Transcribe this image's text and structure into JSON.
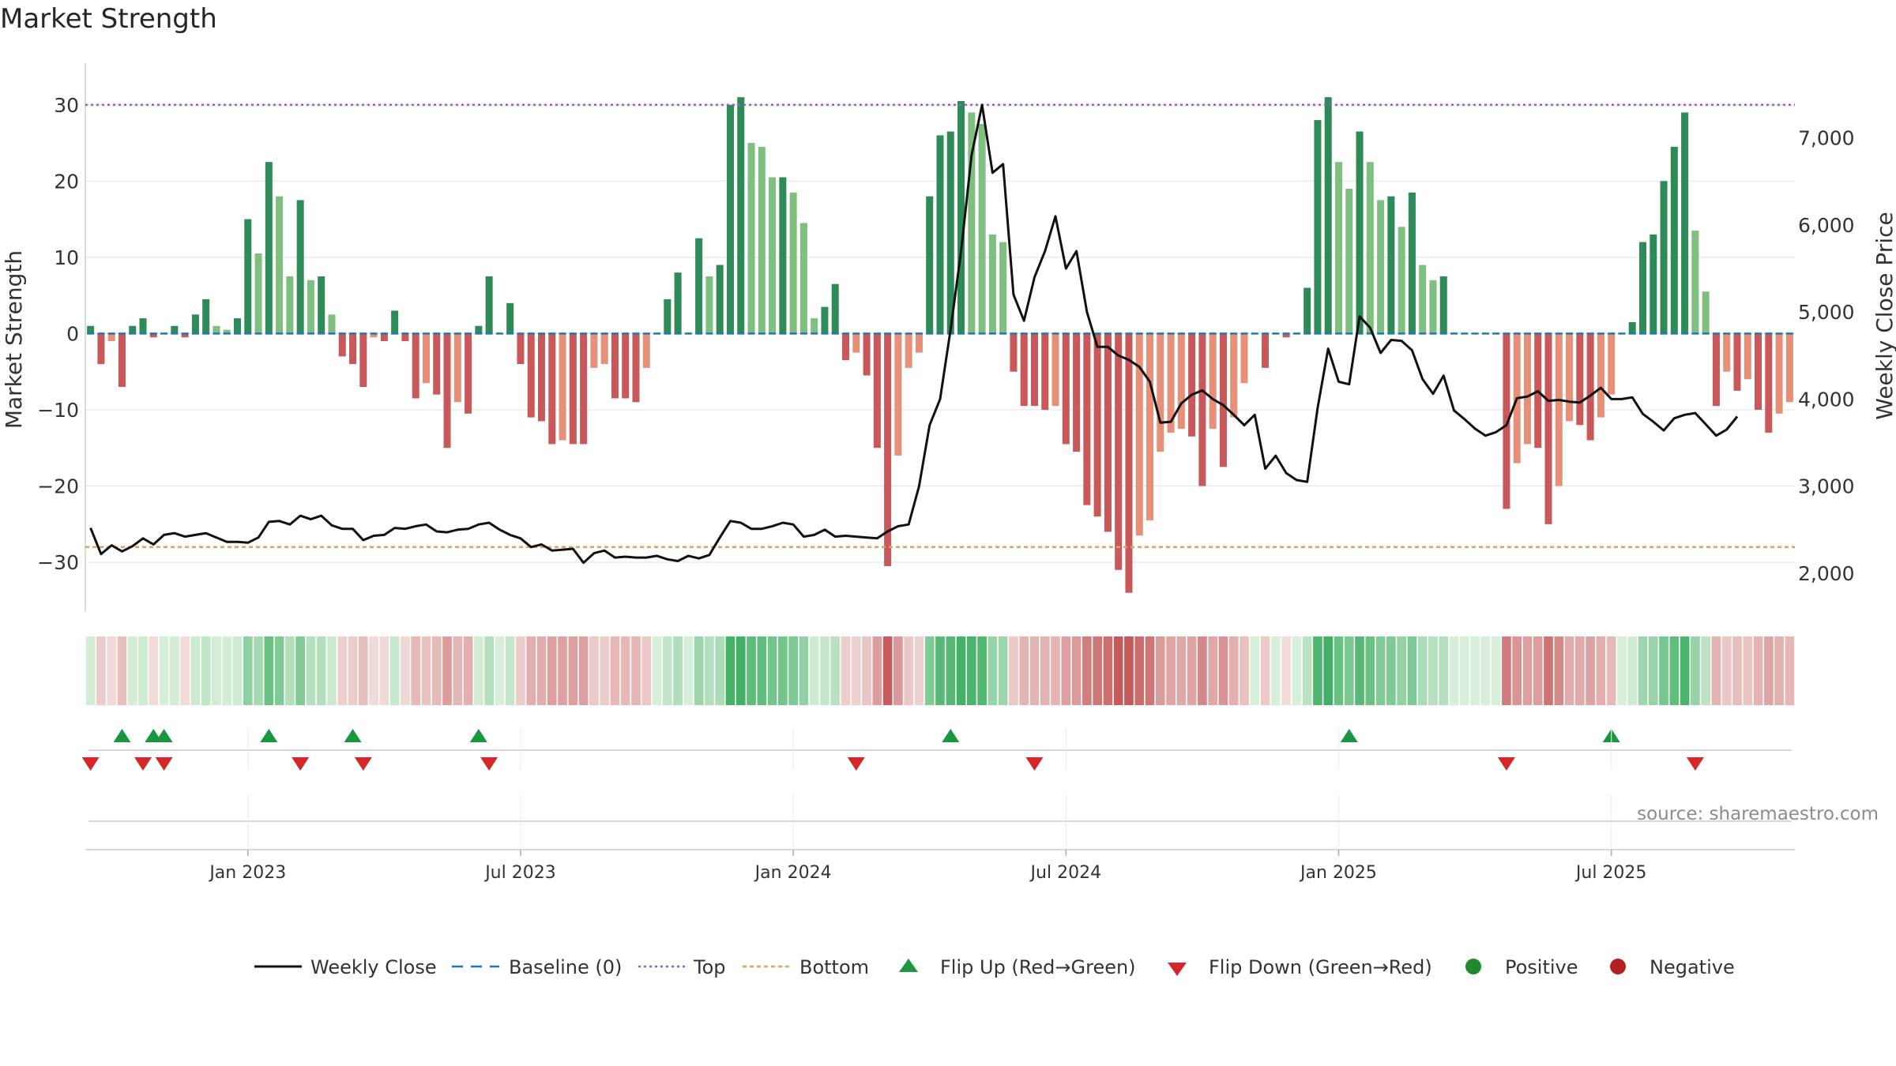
{
  "title": "Market Strength",
  "source_label": "source: sharemaestro.com",
  "colors": {
    "strong_green": "#2e8b57",
    "light_green": "#7fbf7f",
    "strong_red": "#c8585a",
    "light_red": "#e6907a",
    "top_line": "#9b59d6",
    "bottom_line": "#e0a060",
    "baseline": "#1f77b4",
    "close_line": "#111111",
    "flip_up": "#1a9641",
    "flip_down": "#d62728",
    "positive": "#1e8a2e",
    "negative": "#b22222"
  },
  "chart_data": {
    "type": "bar+line",
    "title": "Market Strength",
    "ylabel_left": "Market Strength",
    "ylabel_right": "Weekly Close Price",
    "ylim_left": [
      -36,
      36.5
    ],
    "ylim_right": [
      1600,
      7950
    ],
    "yticks_left": [
      30,
      20,
      10,
      0,
      -10,
      -20,
      -30
    ],
    "yticks_left_labels": [
      "30",
      "20",
      "10",
      "0",
      "−10",
      "−20",
      "−30"
    ],
    "yticks_right": [
      7000,
      6000,
      5000,
      4000,
      3000,
      2000
    ],
    "yticks_right_labels": [
      "7,000",
      "6,000",
      "5,000",
      "4,000",
      "3,000",
      "2,000"
    ],
    "x_start_week_index": 0,
    "xticks": [
      {
        "label": "Jan 2023",
        "week": 15
      },
      {
        "label": "Jul 2023",
        "week": 41
      },
      {
        "label": "Jan 2024",
        "week": 67
      },
      {
        "label": "Jul 2024",
        "week": 93
      },
      {
        "label": "Jan 2025",
        "week": 119
      },
      {
        "label": "Jul 2025",
        "week": 145
      }
    ],
    "top_level": 30,
    "bottom_level": -28,
    "strength": [
      1,
      -4,
      -1,
      -7,
      1,
      2,
      -0.5,
      0,
      1,
      -0.5,
      2.5,
      4.5,
      1,
      0.5,
      2,
      15,
      10.5,
      22.5,
      18,
      7.5,
      17.5,
      7,
      7.5,
      2.5,
      -3,
      -4,
      -7,
      -0.5,
      -1,
      3,
      -1,
      -8.5,
      -6.5,
      -8,
      -15,
      -9,
      -10.5,
      1,
      7.5,
      0,
      4,
      -4,
      -11,
      -11.5,
      -14.5,
      -14,
      -14.5,
      -14.5,
      -4.5,
      -4,
      -8.5,
      -8.5,
      -9,
      -4.5,
      0,
      4.5,
      8,
      0,
      12.5,
      7.5,
      9,
      30,
      31,
      25,
      24.5,
      20.5,
      20.5,
      18.5,
      14.5,
      2,
      3.5,
      6.5,
      -3.5,
      -2.5,
      -5.5,
      -15,
      -30.5,
      -16,
      -4.5,
      -2.5,
      18,
      26,
      26.5,
      30.5,
      29,
      27.5,
      13,
      12,
      -5,
      -9.5,
      -9.5,
      -10,
      -9.5,
      -14.5,
      -15.5,
      -22.5,
      -24,
      -26,
      -31,
      -34,
      -26.5,
      -24.5,
      -15.5,
      -13,
      -12.5,
      -13.5,
      -20,
      -12.5,
      -17.5,
      -11,
      -6.5,
      0,
      -4.5,
      0,
      -0.5,
      0,
      6,
      28,
      31,
      22.5,
      19,
      26.5,
      22.5,
      17.5,
      18,
      14,
      18.5,
      9,
      7,
      7.5,
      0,
      0,
      0,
      0,
      0,
      -23,
      -17,
      -14.5,
      -15,
      -25,
      -20,
      -11.5,
      -12,
      -14,
      -11,
      -8,
      0,
      1.5,
      12,
      13,
      20,
      24.5,
      29,
      13.5,
      5.5,
      -9.5,
      -5,
      -7.5,
      -6,
      -10,
      -13,
      -10.5,
      -9
    ],
    "weekly_close": [
      2520,
      2220,
      2320,
      2250,
      2310,
      2400,
      2330,
      2440,
      2460,
      2420,
      2440,
      2460,
      2410,
      2360,
      2360,
      2350,
      2410,
      2590,
      2600,
      2560,
      2660,
      2620,
      2660,
      2550,
      2510,
      2510,
      2380,
      2430,
      2440,
      2520,
      2510,
      2540,
      2560,
      2480,
      2470,
      2500,
      2510,
      2560,
      2580,
      2500,
      2440,
      2400,
      2300,
      2330,
      2260,
      2270,
      2280,
      2120,
      2230,
      2260,
      2180,
      2190,
      2180,
      2180,
      2200,
      2160,
      2140,
      2200,
      2170,
      2210,
      2410,
      2600,
      2580,
      2510,
      2510,
      2540,
      2580,
      2560,
      2420,
      2440,
      2500,
      2420,
      2430,
      2420,
      2410,
      2400,
      2480,
      2540,
      2560,
      3000,
      3700,
      4000,
      4800,
      5700,
      6800,
      7380,
      6600,
      6700,
      5200,
      4900,
      5400,
      5700,
      6100,
      5500,
      5700,
      5000,
      4600,
      4600,
      4500,
      4450,
      4370,
      4200,
      3730,
      3740,
      3950,
      4050,
      4100,
      4000,
      3930,
      3820,
      3700,
      3820,
      3200,
      3350,
      3150,
      3070,
      3050,
      3900,
      4580,
      4200,
      4170,
      4950,
      4820,
      4530,
      4680,
      4670,
      4560,
      4230,
      4060,
      4270,
      3870,
      3770,
      3660,
      3580,
      3620,
      3700,
      4010,
      4030,
      4090,
      3980,
      3990,
      3970,
      3960,
      4040,
      4130,
      4000,
      4000,
      4020,
      3830,
      3740,
      3640,
      3780,
      3820,
      3840,
      3710,
      3580,
      3650,
      3800
    ],
    "ribbon_legend": "cell colour follows strength sign and magnitude",
    "flip_up_weeks": [
      3,
      6,
      7,
      17,
      25,
      37,
      82,
      120,
      145
    ],
    "flip_down_weeks": [
      0,
      5,
      7,
      20,
      26,
      38,
      73,
      90,
      135,
      153
    ],
    "legend": [
      "Weekly Close",
      "Baseline (0)",
      "Top",
      "Bottom",
      "Flip Up (Red→Green)",
      "Flip Down (Green→Red)",
      "Positive",
      "Negative"
    ]
  }
}
